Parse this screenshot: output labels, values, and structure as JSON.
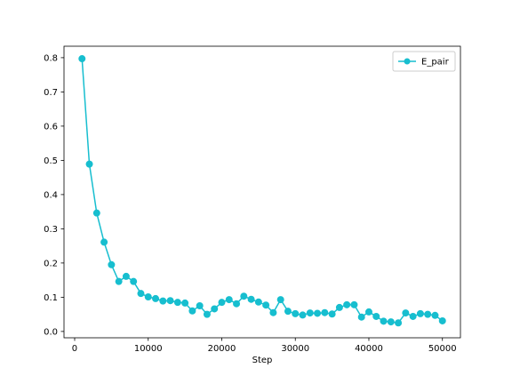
{
  "chart_data": {
    "type": "line",
    "title": "",
    "xlabel": "Step",
    "ylabel": "",
    "xlim": [
      -1450,
      52450
    ],
    "ylim": [
      -0.0185,
      0.8335
    ],
    "xticks": [
      0,
      10000,
      20000,
      30000,
      40000,
      50000
    ],
    "yticks": [
      0.0,
      0.1,
      0.2,
      0.3,
      0.4,
      0.5,
      0.6,
      0.7,
      0.8
    ],
    "xtick_labels": [
      "0",
      "10000",
      "20000",
      "30000",
      "40000",
      "50000"
    ],
    "ytick_labels": [
      "0.0",
      "0.1",
      "0.2",
      "0.3",
      "0.4",
      "0.5",
      "0.6",
      "0.7",
      "0.8"
    ],
    "grid": false,
    "legend_position": "top-right",
    "x": [
      1000,
      2000,
      3000,
      4000,
      5000,
      6000,
      7000,
      8000,
      9000,
      10000,
      11000,
      12000,
      13000,
      14000,
      15000,
      16000,
      17000,
      18000,
      19000,
      20000,
      21000,
      22000,
      23000,
      24000,
      25000,
      26000,
      27000,
      28000,
      29000,
      30000,
      31000,
      32000,
      33000,
      34000,
      35000,
      36000,
      37000,
      38000,
      39000,
      40000,
      41000,
      42000,
      43000,
      44000,
      45000,
      46000,
      47000,
      48000,
      49000,
      50000
    ],
    "series": [
      {
        "name": "E_pair",
        "color": "#17becf",
        "marker": "circle",
        "values": [
          0.797,
          0.489,
          0.346,
          0.261,
          0.195,
          0.146,
          0.161,
          0.146,
          0.111,
          0.101,
          0.096,
          0.089,
          0.09,
          0.085,
          0.083,
          0.06,
          0.075,
          0.05,
          0.066,
          0.085,
          0.093,
          0.081,
          0.103,
          0.094,
          0.086,
          0.077,
          0.055,
          0.093,
          0.059,
          0.052,
          0.048,
          0.054,
          0.053,
          0.055,
          0.051,
          0.07,
          0.078,
          0.078,
          0.042,
          0.057,
          0.044,
          0.03,
          0.028,
          0.025,
          0.054,
          0.044,
          0.052,
          0.05,
          0.047,
          0.031
        ]
      }
    ]
  }
}
